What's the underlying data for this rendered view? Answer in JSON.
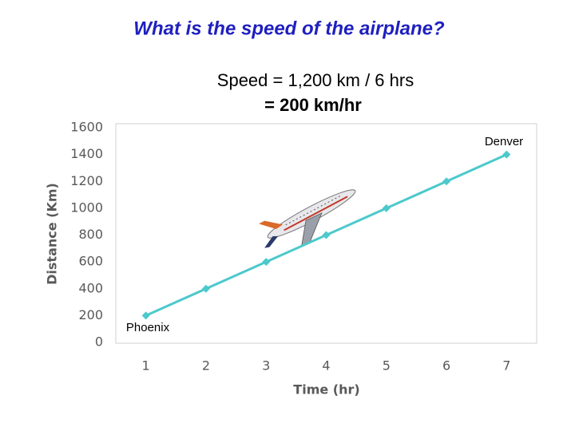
{
  "chart_data": {
    "type": "line",
    "title": "What is the speed of the airplane?",
    "annotations": [
      "Speed = 1,200 km / 6 hrs",
      "= 200 km/hr",
      "Denver",
      "Phoenix"
    ],
    "x_label": "Time (hr)",
    "y_label": "Distance (Km)",
    "x": [
      1,
      2,
      3,
      4,
      5,
      6,
      7
    ],
    "values": [
      200,
      400,
      600,
      800,
      1000,
      1200,
      1400
    ],
    "color": "#4cc9cc",
    "xlim": [
      0.5,
      7.5
    ],
    "xticks": [
      1,
      2,
      3,
      4,
      5,
      6,
      7
    ],
    "ylim": [
      0,
      1600
    ],
    "yticks": [
      0,
      200,
      400,
      600,
      800,
      1000,
      1200,
      1400,
      1600
    ],
    "grid": false
  }
}
